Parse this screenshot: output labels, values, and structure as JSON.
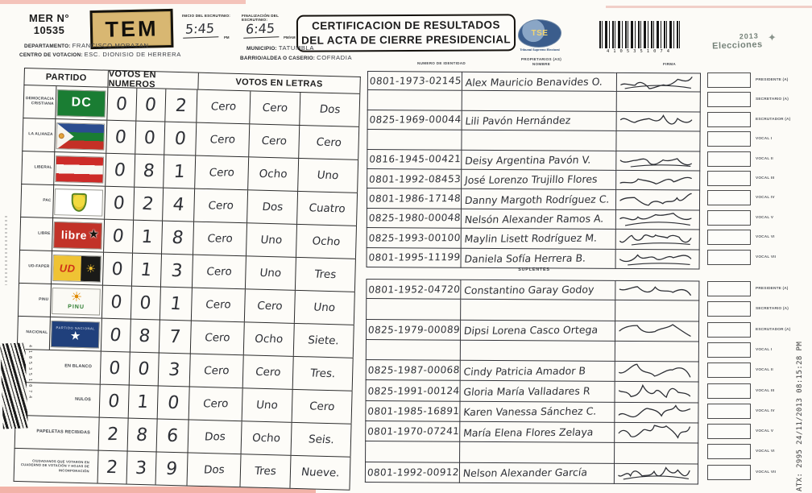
{
  "header": {
    "mer_label": "MER N°",
    "mer_number": "10535",
    "stamp": "TEM",
    "inicio_label": "INICIO DEL ESCRUTINIO:",
    "fin_label": "FINALIZACIÓN DEL ESCRUTINIO:",
    "inicio_time": "5:45",
    "inicio_suffix": "PM",
    "fin_time": "6:45",
    "fin_suffix": "PM/AM",
    "title_line1": "CERTIFICACION DE RESULTADOS",
    "title_line2": "DEL ACTA DE CIERRE PRESIDENCIAL",
    "tse_acronym": "TSE",
    "tse_name": "Tribunal Supremo Electoral",
    "barcode_digits": "4105351074",
    "elecciones_year": "2013",
    "elecciones_word": "Elecciones"
  },
  "meta": {
    "departamento_label": "DEPARTAMENTO:",
    "departamento": "FRANCISCO MORAZAN",
    "centro_label": "CENTRO DE VOTACION:",
    "centro": "ESC. DIONISIO DE HERRERA",
    "municipio_label": "MUNICIPIO:",
    "municipio": "TATUMBLA",
    "barrio_label": "BARRIO/ALDEA O CASERIO:",
    "barrio": "COFRADIA"
  },
  "results_table": {
    "col_partido": "PARTIDO",
    "col_numeros": "VOTOS EN NUMEROS",
    "col_letras": "VOTOS EN LETRAS",
    "flag_labels": {
      "dc": "DC",
      "libre": "libre",
      "ud": "UD",
      "pinu": "PINU",
      "nacional": "PARTIDO NACIONAL"
    },
    "rows": [
      {
        "party": "DEMOCRACIA CRISTIANA",
        "flag": "dc",
        "digits": [
          "0",
          "0",
          "2"
        ],
        "words": [
          "Cero",
          "Cero",
          "Dos"
        ]
      },
      {
        "party": "LA ALIANZA",
        "flag": "alianza",
        "digits": [
          "0",
          "0",
          "0"
        ],
        "words": [
          "Cero",
          "Cero",
          "Cero"
        ]
      },
      {
        "party": "LIBERAL",
        "flag": "liberal",
        "digits": [
          "0",
          "8",
          "1"
        ],
        "words": [
          "Cero",
          "Ocho",
          "Uno"
        ]
      },
      {
        "party": "PAC",
        "flag": "pac",
        "digits": [
          "0",
          "2",
          "4"
        ],
        "words": [
          "Cero",
          "Dos",
          "Cuatro"
        ]
      },
      {
        "party": "LIBRE",
        "flag": "libre",
        "digits": [
          "0",
          "1",
          "8"
        ],
        "words": [
          "Cero",
          "Uno",
          "Ocho"
        ]
      },
      {
        "party": "UD-FAPER",
        "flag": "ud",
        "digits": [
          "0",
          "1",
          "3"
        ],
        "words": [
          "Cero",
          "Uno",
          "Tres"
        ]
      },
      {
        "party": "PINU",
        "flag": "pinu",
        "digits": [
          "0",
          "0",
          "1"
        ],
        "words": [
          "Cero",
          "Cero",
          "Uno"
        ]
      },
      {
        "party": "NACIONAL",
        "flag": "nacional",
        "digits": [
          "0",
          "8",
          "7"
        ],
        "words": [
          "Cero",
          "Ocho",
          "Siete."
        ]
      },
      {
        "party": "EN BLANCO",
        "flag": null,
        "digits": [
          "0",
          "0",
          "3"
        ],
        "words": [
          "Cero",
          "Cero",
          "Tres."
        ]
      },
      {
        "party": "NULOS",
        "flag": null,
        "digits": [
          "0",
          "1",
          "0"
        ],
        "words": [
          "Cero",
          "Uno",
          "Cero"
        ]
      },
      {
        "party": "PAPELETAS RECIBIDAS",
        "flag": null,
        "digits": [
          "2",
          "8",
          "6"
        ],
        "words": [
          "Dos",
          "Ocho",
          "Seis."
        ]
      },
      {
        "party": "CIUDADANOS QUE VOTARON EN CUADERNO DE VOTACIÓN Y HOJAS DE INCORPORACIÓN",
        "flag": null,
        "digits": [
          "2",
          "3",
          "9"
        ],
        "words": [
          "Dos",
          "Tres",
          "Nueve."
        ]
      }
    ]
  },
  "members": {
    "id_header": "NUMERO DE IDENTIDAD",
    "propietarios_header": "PROPIETARIOS (AS)",
    "nombre_header": "NOMBRE",
    "firma_header": "FIRMA",
    "suplentes_header": "SUPLENTES",
    "roles": [
      "PRESIDENTE (A)",
      "SECRETARIO (A)",
      "ESCRUTADOR (A)",
      "VOCAL I",
      "VOCAL II",
      "VOCAL III",
      "VOCAL IV",
      "VOCAL V",
      "VOCAL VI",
      "VOCAL VII"
    ],
    "propietarios": [
      {
        "id": "0801-1973-02145",
        "name": "Alex Mauricio Benavides O.",
        "signed": true
      },
      {
        "id": "",
        "name": "",
        "signed": false
      },
      {
        "id": "0825-1969-00044",
        "name": "Lili Pavón Hernández",
        "signed": true
      },
      {
        "id": "",
        "name": "",
        "signed": false
      },
      {
        "id": "0816-1945-00421",
        "name": "Deisy Argentina Pavón V.",
        "signed": true
      },
      {
        "id": "0801-1992-08453",
        "name": "José Lorenzo Trujillo Flores",
        "signed": true
      },
      {
        "id": "0801-1986-17148",
        "name": "Danny Margoth Rodríguez C.",
        "signed": true
      },
      {
        "id": "0825-1980-00048",
        "name": "Nelsón Alexander Ramos A.",
        "signed": true
      },
      {
        "id": "0825-1993-00100",
        "name": "Maylin Lisett Rodríguez M.",
        "signed": true
      },
      {
        "id": "0801-1995-11199",
        "name": "Daniela Sofía Herrera B.",
        "signed": true
      }
    ],
    "suplentes": [
      {
        "id": "0801-1952-04720",
        "name": "Constantino Garay Godoy",
        "signed": true
      },
      {
        "id": "",
        "name": "",
        "signed": false
      },
      {
        "id": "0825-1979-00089",
        "name": "Dipsi Lorena Casco Ortega",
        "signed": true
      },
      {
        "id": "",
        "name": "",
        "signed": false
      },
      {
        "id": "0825-1987-00068",
        "name": "Cindy Patricia Amador B",
        "signed": true
      },
      {
        "id": "0825-1991-00124",
        "name": "Gloria María Valladares R",
        "signed": true
      },
      {
        "id": "0801-1985-16891",
        "name": "Karen Vanessa Sánchez C.",
        "signed": true
      },
      {
        "id": "0801-1970-07241",
        "name": "María Elena Flores Zelaya",
        "signed": true
      },
      {
        "id": "",
        "name": "",
        "signed": false
      },
      {
        "id": "0801-1992-00912",
        "name": "Nelson Alexander García",
        "signed": true
      }
    ]
  },
  "footer": {
    "scan_stamp": "ATX: 2995 24/11/2013 08:15:28 PM"
  }
}
